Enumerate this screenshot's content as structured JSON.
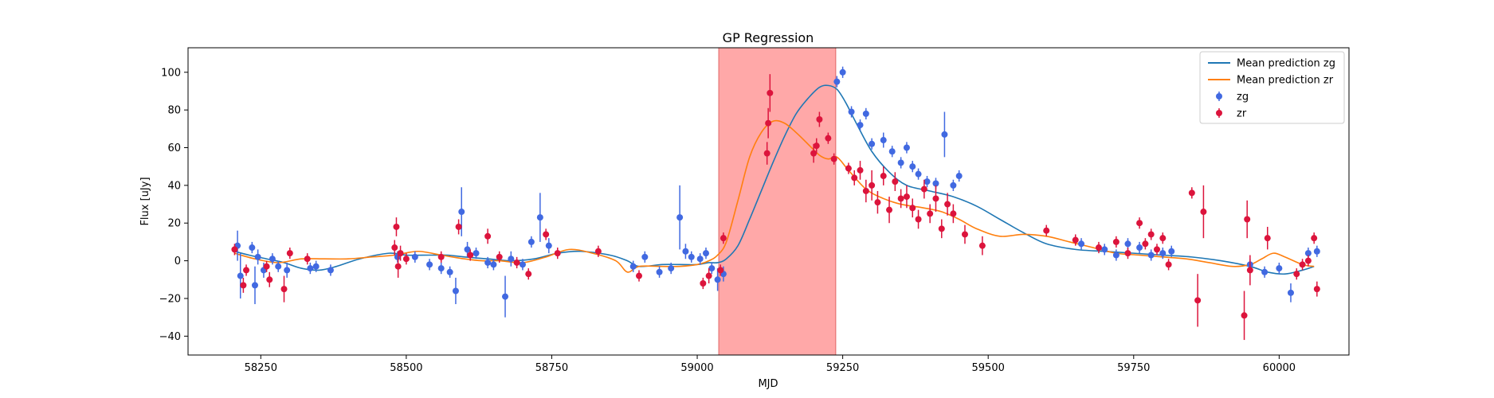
{
  "chart_data": {
    "type": "scatter",
    "title": "GP Regression",
    "xlabel": "MJD",
    "ylabel": "Flux [uJy]",
    "xlim": [
      58125,
      60120
    ],
    "ylim": [
      -50,
      113
    ],
    "xticks": [
      58250,
      58500,
      58750,
      59000,
      59250,
      59500,
      59750,
      60000
    ],
    "yticks": [
      -40,
      -20,
      0,
      20,
      40,
      60,
      80,
      100
    ],
    "grid": false,
    "legend_position": "top-right",
    "legend": {
      "zg_line": "Mean prediction zg",
      "zr_line": "Mean prediction zr",
      "zg_points": "zg",
      "zr_points": "zr"
    },
    "colors": {
      "zg_line": "#1f77b4",
      "zr_line": "#ff7f0e",
      "zg_points": "#4169e1",
      "zr_points": "#dc143c",
      "span": "#ff9999"
    },
    "highlight_span": [
      59037,
      59238
    ],
    "series": [
      {
        "name": "Mean prediction zg",
        "kind": "line",
        "x": [
          58205,
          58230,
          58260,
          58290,
          58320,
          58350,
          58380,
          58420,
          58470,
          58500,
          58540,
          58570,
          58600,
          58640,
          58680,
          58720,
          58760,
          58800,
          58850,
          58880,
          58900,
          58940,
          58970,
          59000,
          59020,
          59035,
          59050,
          59070,
          59090,
          59110,
          59130,
          59150,
          59170,
          59190,
          59210,
          59225,
          59240,
          59255,
          59275,
          59300,
          59330,
          59360,
          59400,
          59440,
          59480,
          59520,
          59560,
          59600,
          59650,
          59700,
          59750,
          59800,
          59850,
          59900,
          59950,
          59980,
          60010,
          60040,
          60060
        ],
        "y": [
          5,
          3,
          1,
          -1,
          -4,
          -5,
          -3,
          1,
          4,
          3,
          3,
          3,
          2,
          1,
          0,
          1,
          4,
          5,
          3,
          0,
          -3,
          -2,
          -2,
          -2,
          -1,
          -1,
          1,
          8,
          22,
          37,
          52,
          66,
          78,
          86,
          92,
          93,
          91,
          84,
          72,
          58,
          47,
          40,
          37,
          34,
          29,
          22,
          15,
          9,
          6,
          5,
          4,
          3,
          2,
          0,
          -3,
          -6,
          -7,
          -5,
          -3
        ]
      },
      {
        "name": "Mean prediction zr",
        "kind": "line",
        "x": [
          58205,
          58240,
          58280,
          58320,
          58360,
          58400,
          58440,
          58480,
          58520,
          58560,
          58600,
          58630,
          58660,
          58700,
          58740,
          58780,
          58820,
          58860,
          58880,
          58900,
          58940,
          58970,
          59000,
          59020,
          59035,
          59050,
          59070,
          59090,
          59110,
          59130,
          59150,
          59170,
          59190,
          59210,
          59225,
          59240,
          59260,
          59290,
          59320,
          59350,
          59390,
          59420,
          59450,
          59480,
          59520,
          59560,
          59600,
          59640,
          59680,
          59720,
          59760,
          59800,
          59840,
          59880,
          59920,
          59950,
          59970,
          59990,
          60010,
          60040,
          60060
        ],
        "y": [
          4,
          1,
          -1,
          1,
          1,
          1,
          2,
          3,
          5,
          3,
          1,
          0,
          0,
          -1,
          2,
          6,
          4,
          0,
          -6,
          -3,
          -3,
          -3,
          -2,
          0,
          3,
          10,
          32,
          55,
          68,
          74,
          73,
          68,
          62,
          56,
          54,
          55,
          48,
          38,
          33,
          30,
          28,
          26,
          22,
          17,
          13,
          14,
          13,
          10,
          7,
          4,
          3,
          2,
          1,
          -1,
          -3,
          -2,
          1,
          4,
          2,
          -2,
          -3
        ]
      },
      {
        "name": "zg",
        "kind": "errorbar",
        "x": [
          58210,
          58215,
          58235,
          58240,
          58245,
          58255,
          58270,
          58280,
          58295,
          58335,
          58345,
          58370,
          58485,
          58515,
          58540,
          58560,
          58575,
          58585,
          58595,
          58605,
          58620,
          58640,
          58650,
          58670,
          58680,
          58700,
          58715,
          58730,
          58745,
          58890,
          58910,
          58935,
          58955,
          58970,
          58980,
          58990,
          59005,
          59015,
          59025,
          59035,
          59045,
          59240,
          59250,
          59265,
          59280,
          59290,
          59300,
          59320,
          59335,
          59350,
          59360,
          59370,
          59380,
          59395,
          59410,
          59425,
          59440,
          59450,
          59660,
          59700,
          59720,
          59740,
          59760,
          59780,
          59800,
          59815,
          59950,
          59975,
          60000,
          60020,
          60050,
          60065
        ],
        "y": [
          8,
          -8,
          7,
          -13,
          2,
          -5,
          1,
          -3,
          -5,
          -4,
          -3,
          -5,
          2,
          2,
          -2,
          -4,
          -6,
          -16,
          26,
          6,
          4,
          -1,
          -2,
          -19,
          1,
          -2,
          10,
          23,
          8,
          -3,
          2,
          -6,
          -4,
          23,
          5,
          2,
          1,
          4,
          -4,
          -10,
          -7,
          95,
          100,
          79,
          72,
          78,
          62,
          64,
          58,
          52,
          60,
          50,
          46,
          42,
          41,
          67,
          40,
          45,
          9,
          6,
          3,
          9,
          7,
          3,
          4,
          5,
          -2,
          -6,
          -4,
          -17,
          4,
          5
        ],
        "err": [
          8,
          12,
          3,
          10,
          4,
          4,
          3,
          3,
          4,
          3,
          3,
          3,
          3,
          3,
          3,
          3,
          3,
          7,
          13,
          4,
          3,
          3,
          3,
          11,
          4,
          3,
          3,
          13,
          4,
          3,
          3,
          3,
          3,
          17,
          4,
          3,
          3,
          3,
          3,
          6,
          4,
          3,
          3,
          3,
          3,
          3,
          3,
          4,
          3,
          3,
          3,
          3,
          3,
          3,
          3,
          12,
          3,
          3,
          3,
          3,
          3,
          3,
          3,
          3,
          3,
          3,
          3,
          3,
          3,
          5,
          3,
          3
        ]
      },
      {
        "name": "zr",
        "kind": "errorbar",
        "x": [
          58205,
          58220,
          58225,
          58260,
          58265,
          58290,
          58300,
          58330,
          58480,
          58483,
          58486,
          58490,
          58500,
          58560,
          58590,
          58610,
          58640,
          58660,
          58690,
          58710,
          58740,
          58760,
          58830,
          58900,
          59010,
          59020,
          59040,
          59045,
          59120,
          59122,
          59125,
          59200,
          59205,
          59210,
          59225,
          59235,
          59260,
          59270,
          59280,
          59290,
          59300,
          59310,
          59320,
          59330,
          59340,
          59350,
          59360,
          59370,
          59380,
          59390,
          59400,
          59410,
          59420,
          59430,
          59440,
          59460,
          59490,
          59600,
          59650,
          59690,
          59720,
          59740,
          59760,
          59770,
          59780,
          59790,
          59800,
          59810,
          59850,
          59860,
          59870,
          59940,
          59945,
          59950,
          59980,
          60030,
          60040,
          60050,
          60060,
          60065
        ],
        "y": [
          6,
          -13,
          -5,
          -3,
          -10,
          -15,
          4,
          1,
          7,
          18,
          -3,
          4,
          1,
          2,
          18,
          3,
          13,
          2,
          -1,
          -7,
          14,
          4,
          5,
          -8,
          -12,
          -8,
          -5,
          12,
          57,
          73,
          89,
          57,
          61,
          75,
          65,
          54,
          49,
          44,
          48,
          37,
          40,
          31,
          45,
          27,
          42,
          33,
          34,
          28,
          22,
          38,
          25,
          33,
          17,
          30,
          25,
          14,
          8,
          16,
          11,
          7,
          10,
          4,
          20,
          9,
          14,
          6,
          12,
          -2,
          36,
          -21,
          26,
          -29,
          22,
          -5,
          12,
          -7,
          -2,
          0,
          12,
          -15
        ],
        "err": [
          3,
          4,
          3,
          3,
          4,
          7,
          3,
          3,
          4,
          5,
          6,
          4,
          3,
          3,
          4,
          3,
          4,
          3,
          3,
          3,
          3,
          3,
          3,
          3,
          3,
          4,
          3,
          3,
          6,
          8,
          10,
          5,
          4,
          4,
          3,
          3,
          3,
          4,
          5,
          6,
          8,
          6,
          5,
          7,
          5,
          5,
          6,
          5,
          5,
          5,
          5,
          7,
          5,
          6,
          5,
          5,
          5,
          3,
          3,
          3,
          3,
          3,
          3,
          3,
          3,
          3,
          3,
          3,
          3,
          14,
          14,
          13,
          10,
          8,
          6,
          3,
          3,
          3,
          3,
          4
        ]
      }
    ]
  }
}
